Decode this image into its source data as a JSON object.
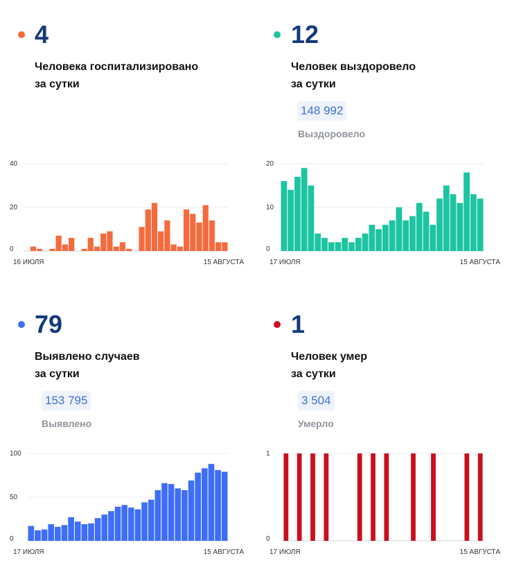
{
  "panels": [
    {
      "id": "hospitalized",
      "color": "#f56b3d",
      "value": "4",
      "line1": "Человека госпитализировано",
      "line2": "за сутки",
      "total": "",
      "total_label": "",
      "chart_data": {
        "type": "bar",
        "x_start_label": "16 ИЮЛЯ",
        "x_end_label": "15 АВГУСТА",
        "ylim": [
          0,
          40
        ],
        "yticks": [
          "0",
          "20",
          "40"
        ],
        "values": [
          0,
          2,
          1,
          0,
          1,
          7,
          3,
          6,
          0,
          1,
          6,
          2,
          8,
          9,
          2,
          4,
          1,
          0,
          11,
          19,
          22,
          9,
          14,
          3,
          2,
          19,
          17,
          13,
          21,
          14,
          4,
          4
        ]
      }
    },
    {
      "id": "recovered",
      "color": "#1dc4a1",
      "value": "12",
      "line1": "Человек выздоровело",
      "line2": "за сутки",
      "total": "148 992",
      "total_label": "Выздоровело",
      "chart_data": {
        "type": "bar",
        "x_start_label": "17 ИЮЛЯ",
        "x_end_label": "15 АВГУСТА",
        "ylim": [
          0,
          20
        ],
        "yticks": [
          "0",
          "10",
          "20"
        ],
        "values": [
          16,
          14,
          17,
          19,
          15,
          4,
          3,
          2,
          2,
          3,
          2,
          3,
          4,
          6,
          5,
          6,
          7,
          10,
          7,
          8,
          11,
          9,
          6,
          12,
          15,
          13,
          11,
          18,
          13,
          12
        ]
      }
    },
    {
      "id": "cases",
      "color": "#3d6ef5",
      "value": "79",
      "line1": "Выявлено случаев",
      "line2": "за сутки",
      "total": "153 795",
      "total_label": "Выявлено",
      "chart_data": {
        "type": "bar",
        "x_start_label": "17 ИЮЛЯ",
        "x_end_label": "15 АВГУСТА",
        "ylim": [
          0,
          100
        ],
        "yticks": [
          "0",
          "50",
          "100"
        ],
        "values": [
          17,
          12,
          13,
          19,
          16,
          18,
          27,
          22,
          19,
          20,
          26,
          30,
          34,
          39,
          41,
          38,
          36,
          44,
          47,
          58,
          66,
          65,
          60,
          58,
          69,
          78,
          83,
          88,
          81,
          79
        ]
      }
    },
    {
      "id": "deaths",
      "color": "#c8101e",
      "value": "1",
      "line1": "Человек умер",
      "line2": "за сутки",
      "total": "3 504",
      "total_label": "Умерло",
      "chart_data": {
        "type": "bar",
        "x_start_label": "17 ИЮЛЯ",
        "x_end_label": "15 АВГУСТА",
        "ylim": [
          0,
          1
        ],
        "yticks": [
          "0",
          "1"
        ],
        "values": [
          1,
          0,
          1,
          0,
          1,
          0,
          1,
          0,
          0,
          0,
          0,
          1,
          0,
          1,
          0,
          1,
          0,
          0,
          0,
          1,
          0,
          0,
          1,
          0,
          0,
          0,
          0,
          1,
          0,
          1
        ]
      }
    }
  ]
}
